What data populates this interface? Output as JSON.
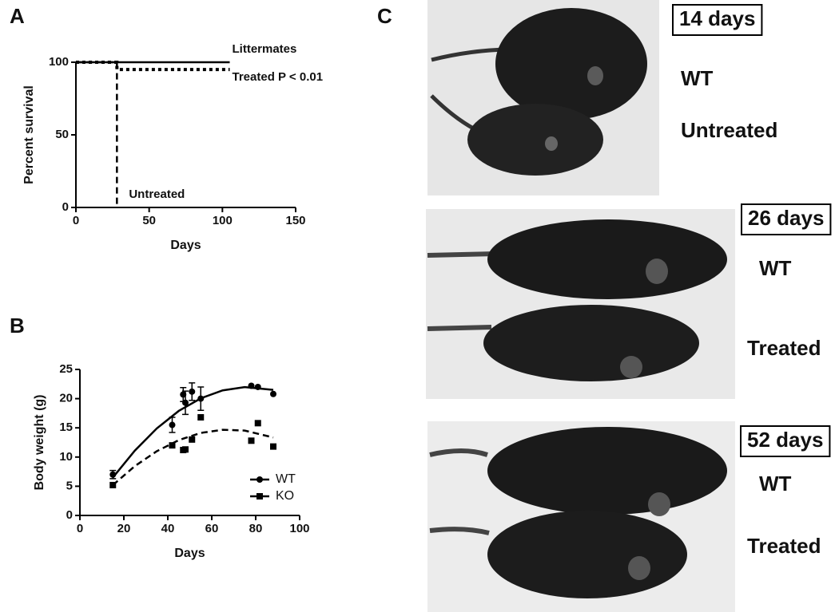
{
  "chart_data": [
    {
      "type": "line",
      "panel_label": "A",
      "xlabel": "Days",
      "ylabel": "Percent survival",
      "xlim": [
        0,
        150
      ],
      "xticks": [
        0,
        50,
        100,
        150
      ],
      "ylim": [
        0,
        100
      ],
      "yticks": [
        0,
        50,
        100
      ],
      "series": [
        {
          "name": "Littermates",
          "style": "solid",
          "color": "#000000",
          "x": [
            0,
            105
          ],
          "values": [
            100,
            100
          ]
        },
        {
          "name": "Treated  P < 0.01",
          "style": "dotted",
          "color": "#000000",
          "x": [
            0,
            28,
            28,
            105
          ],
          "values": [
            100,
            100,
            95,
            95
          ]
        },
        {
          "name": "Untreated",
          "style": "dashed",
          "color": "#000000",
          "x": [
            0,
            28,
            28
          ],
          "values": [
            100,
            100,
            0
          ]
        }
      ]
    },
    {
      "type": "scatter",
      "panel_label": "B",
      "xlabel": "Days",
      "ylabel": "Body weight (g)",
      "xlim": [
        0,
        100
      ],
      "xticks": [
        0,
        20,
        40,
        60,
        80,
        100
      ],
      "ylim": [
        0,
        25
      ],
      "yticks": [
        0,
        5,
        10,
        15,
        20,
        25
      ],
      "legend": "lower right",
      "series": [
        {
          "name": "WT",
          "marker": "circle",
          "style": "solid",
          "color": "#000000",
          "x": [
            15,
            42,
            47,
            48,
            51,
            55,
            78,
            81,
            88
          ],
          "values": [
            7,
            15.5,
            20.7,
            19.3,
            21.2,
            20,
            22.2,
            22,
            20.8
          ],
          "errors": [
            0.7,
            1.3,
            1.2,
            2,
            1.5,
            2,
            0,
            0,
            0
          ],
          "fit": {
            "x": [
              15,
              25,
              35,
              45,
              55,
              65,
              75,
              88
            ],
            "values": [
              6.5,
              11.1,
              14.9,
              17.9,
              20.05,
              21.42,
              21.98,
              21.5
            ]
          }
        },
        {
          "name": "KO",
          "marker": "square",
          "style": "dashed",
          "color": "#000000",
          "x": [
            15,
            42,
            47,
            48,
            51,
            55,
            78,
            81,
            88
          ],
          "values": [
            5.2,
            12,
            11.2,
            11.3,
            13,
            16.8,
            12.8,
            15.8,
            11.8
          ],
          "fit": {
            "x": [
              15,
              25,
              35,
              45,
              55,
              65,
              75,
              88
            ],
            "values": [
              5.2,
              8.45,
              11,
              12.9,
              14.13,
              14.67,
              14.53,
              13.35
            ]
          }
        }
      ]
    }
  ],
  "photo_panel": {
    "panel_label": "C",
    "rows": [
      {
        "age": "14 days",
        "labels": [
          "WT",
          "Untreated"
        ]
      },
      {
        "age": "26 days",
        "labels": [
          "WT",
          "Treated"
        ]
      },
      {
        "age": "52 days",
        "labels": [
          "WT",
          "Treated"
        ]
      }
    ]
  }
}
